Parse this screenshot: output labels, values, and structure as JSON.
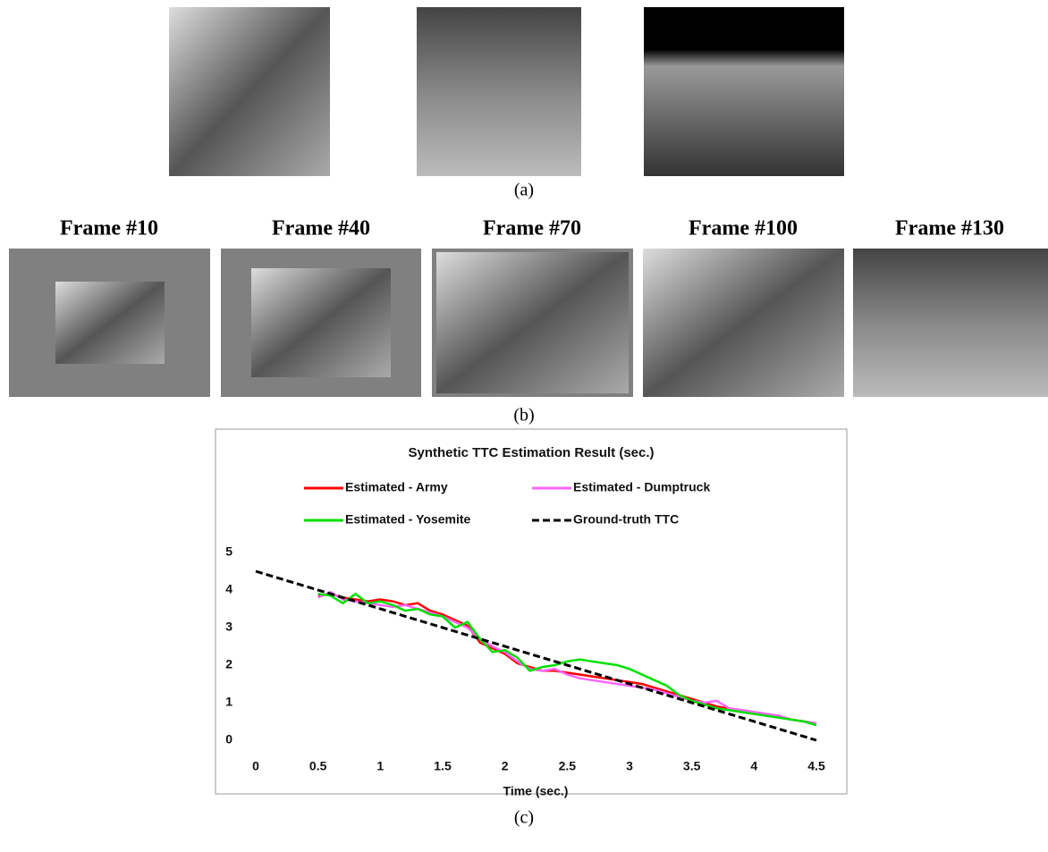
{
  "figure": {
    "panels": [
      "(a)",
      "(b)",
      "(c)"
    ],
    "frames": [
      "Frame #10",
      "Frame #40",
      "Frame #70",
      "Frame #100",
      "Frame #130"
    ]
  },
  "chart_data": {
    "type": "line",
    "title": "Synthetic TTC Estimation Result (sec.)",
    "x_label": "Time (sec.)",
    "xlim": [
      0,
      4.5
    ],
    "xticks": [
      0,
      0.5,
      1,
      1.5,
      2,
      2.5,
      3,
      3.5,
      4,
      4.5
    ],
    "ylim": [
      0,
      5
    ],
    "yticks": [
      0,
      1,
      2,
      3,
      4,
      5
    ],
    "grid": false,
    "legend": "top",
    "series": [
      {
        "name": "Estimated - Army",
        "color": "#ff0000",
        "x": [
          0.5,
          0.6,
          0.7,
          0.8,
          0.9,
          1.0,
          1.1,
          1.2,
          1.3,
          1.4,
          1.5,
          1.6,
          1.7,
          1.8,
          1.9,
          2.0,
          2.1,
          2.2,
          2.3,
          2.4,
          2.5,
          2.6,
          2.7,
          2.8,
          2.9,
          3.0,
          3.1,
          3.2,
          3.3,
          3.4,
          3.5,
          3.6,
          3.7,
          3.8,
          3.9,
          4.0,
          4.1,
          4.2,
          4.3,
          4.4,
          4.5
        ],
        "values": [
          3.85,
          3.9,
          3.8,
          3.75,
          3.7,
          3.75,
          3.7,
          3.6,
          3.65,
          3.45,
          3.35,
          3.2,
          3.05,
          2.6,
          2.45,
          2.3,
          2.05,
          1.95,
          1.85,
          1.85,
          1.8,
          1.75,
          1.7,
          1.65,
          1.6,
          1.55,
          1.5,
          1.4,
          1.3,
          1.2,
          1.1,
          1.0,
          0.9,
          0.85,
          0.8,
          0.75,
          0.7,
          0.65,
          0.55,
          0.5,
          0.45
        ]
      },
      {
        "name": "Estimated - Dumptruck",
        "color": "#ff66ff",
        "x": [
          0.5,
          0.6,
          0.7,
          0.8,
          0.9,
          1.0,
          1.1,
          1.2,
          1.3,
          1.4,
          1.5,
          1.6,
          1.7,
          1.8,
          1.9,
          2.0,
          2.1,
          2.2,
          2.3,
          2.4,
          2.5,
          2.6,
          2.7,
          2.8,
          2.9,
          3.0,
          3.1,
          3.2,
          3.3,
          3.4,
          3.5,
          3.6,
          3.7,
          3.8,
          3.9,
          4.0,
          4.1,
          4.2,
          4.3,
          4.4,
          4.5
        ],
        "values": [
          3.8,
          3.95,
          3.75,
          3.7,
          3.65,
          3.6,
          3.55,
          3.6,
          3.5,
          3.4,
          3.3,
          3.15,
          3.0,
          2.7,
          2.5,
          2.35,
          2.1,
          1.9,
          1.85,
          1.9,
          1.75,
          1.65,
          1.6,
          1.55,
          1.5,
          1.45,
          1.4,
          1.35,
          1.25,
          1.15,
          1.05,
          1.0,
          1.05,
          0.85,
          0.8,
          0.75,
          0.7,
          0.65,
          0.55,
          0.5,
          0.45
        ]
      },
      {
        "name": "Estimated - Yosemite",
        "color": "#00e000",
        "x": [
          0.5,
          0.6,
          0.7,
          0.8,
          0.9,
          1.0,
          1.1,
          1.2,
          1.3,
          1.4,
          1.5,
          1.6,
          1.7,
          1.8,
          1.9,
          2.0,
          2.1,
          2.2,
          2.3,
          2.4,
          2.5,
          2.6,
          2.7,
          2.8,
          2.9,
          3.0,
          3.1,
          3.2,
          3.3,
          3.4,
          3.5,
          3.6,
          3.7,
          3.8,
          3.9,
          4.0,
          4.1,
          4.2,
          4.3,
          4.4,
          4.5
        ],
        "values": [
          3.9,
          3.85,
          3.65,
          3.9,
          3.65,
          3.7,
          3.6,
          3.45,
          3.5,
          3.35,
          3.3,
          3.0,
          3.15,
          2.7,
          2.35,
          2.4,
          2.2,
          1.85,
          1.95,
          2.0,
          2.1,
          2.15,
          2.1,
          2.05,
          2.0,
          1.9,
          1.75,
          1.6,
          1.45,
          1.2,
          1.05,
          0.95,
          0.85,
          0.8,
          0.75,
          0.7,
          0.65,
          0.6,
          0.55,
          0.5,
          0.4
        ]
      },
      {
        "name": "Ground-truth TTC",
        "color": "#000000",
        "linestyle": "dashed",
        "x": [
          0,
          4.5
        ],
        "values": [
          4.5,
          0
        ]
      }
    ]
  }
}
